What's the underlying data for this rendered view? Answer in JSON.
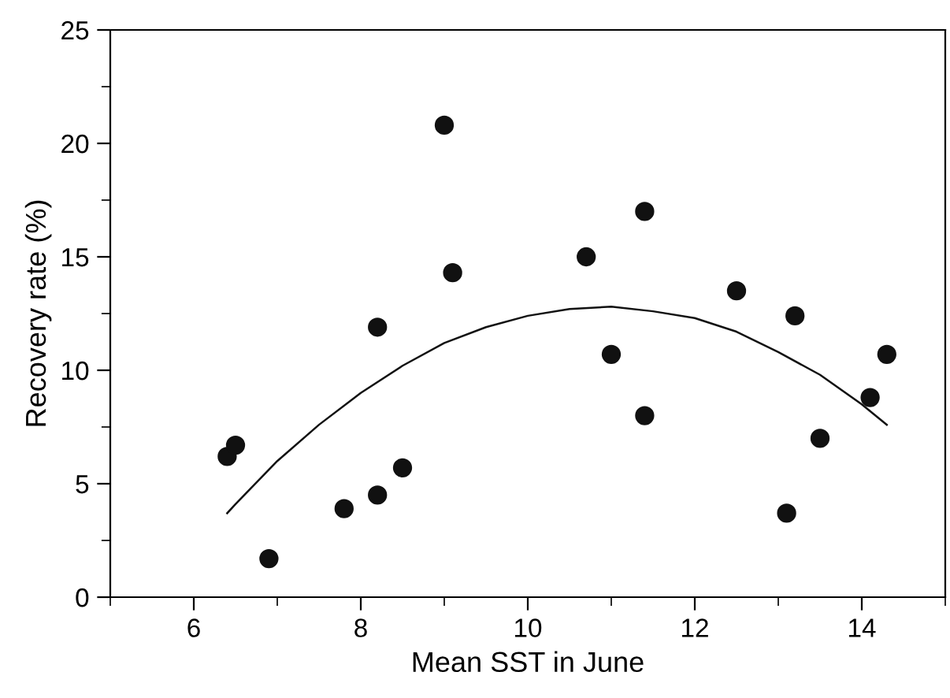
{
  "chart_data": {
    "type": "scatter",
    "xlabel": "Mean SST in June",
    "ylabel": "Recovery rate (%)",
    "xlim": [
      5,
      15
    ],
    "xticks": [
      6,
      8,
      10,
      12,
      14
    ],
    "ylim": [
      0,
      25
    ],
    "yticks": [
      0,
      5,
      10,
      15,
      20,
      25
    ],
    "grid": false,
    "marker": "circle",
    "series": [
      {
        "color": "#111111",
        "x": [
          6.4,
          6.5,
          6.9,
          7.8,
          8.2,
          8.2,
          8.5,
          9.0,
          9.1,
          10.7,
          11.0,
          11.4,
          11.4,
          12.5,
          13.1,
          13.2,
          13.5,
          14.1,
          14.3
        ],
        "values": [
          6.2,
          6.7,
          1.7,
          3.9,
          4.5,
          11.9,
          5.7,
          20.8,
          14.3,
          15.0,
          10.7,
          17.0,
          8.0,
          13.5,
          3.7,
          12.4,
          7.0,
          8.8,
          10.7
        ]
      },
      {
        "type": "line",
        "color": "#111111",
        "marker": "none",
        "x": [
          6.4,
          6.5,
          7.0,
          7.5,
          8.0,
          8.5,
          9.0,
          9.5,
          10.0,
          10.5,
          11.0,
          11.5,
          12.0,
          12.5,
          13.0,
          13.5,
          14.0,
          14.3
        ],
        "values": [
          3.7,
          4.1,
          6.0,
          7.6,
          9.0,
          10.2,
          11.2,
          11.9,
          12.4,
          12.7,
          12.8,
          12.6,
          12.3,
          11.7,
          10.8,
          9.8,
          8.5,
          7.6
        ]
      }
    ]
  }
}
